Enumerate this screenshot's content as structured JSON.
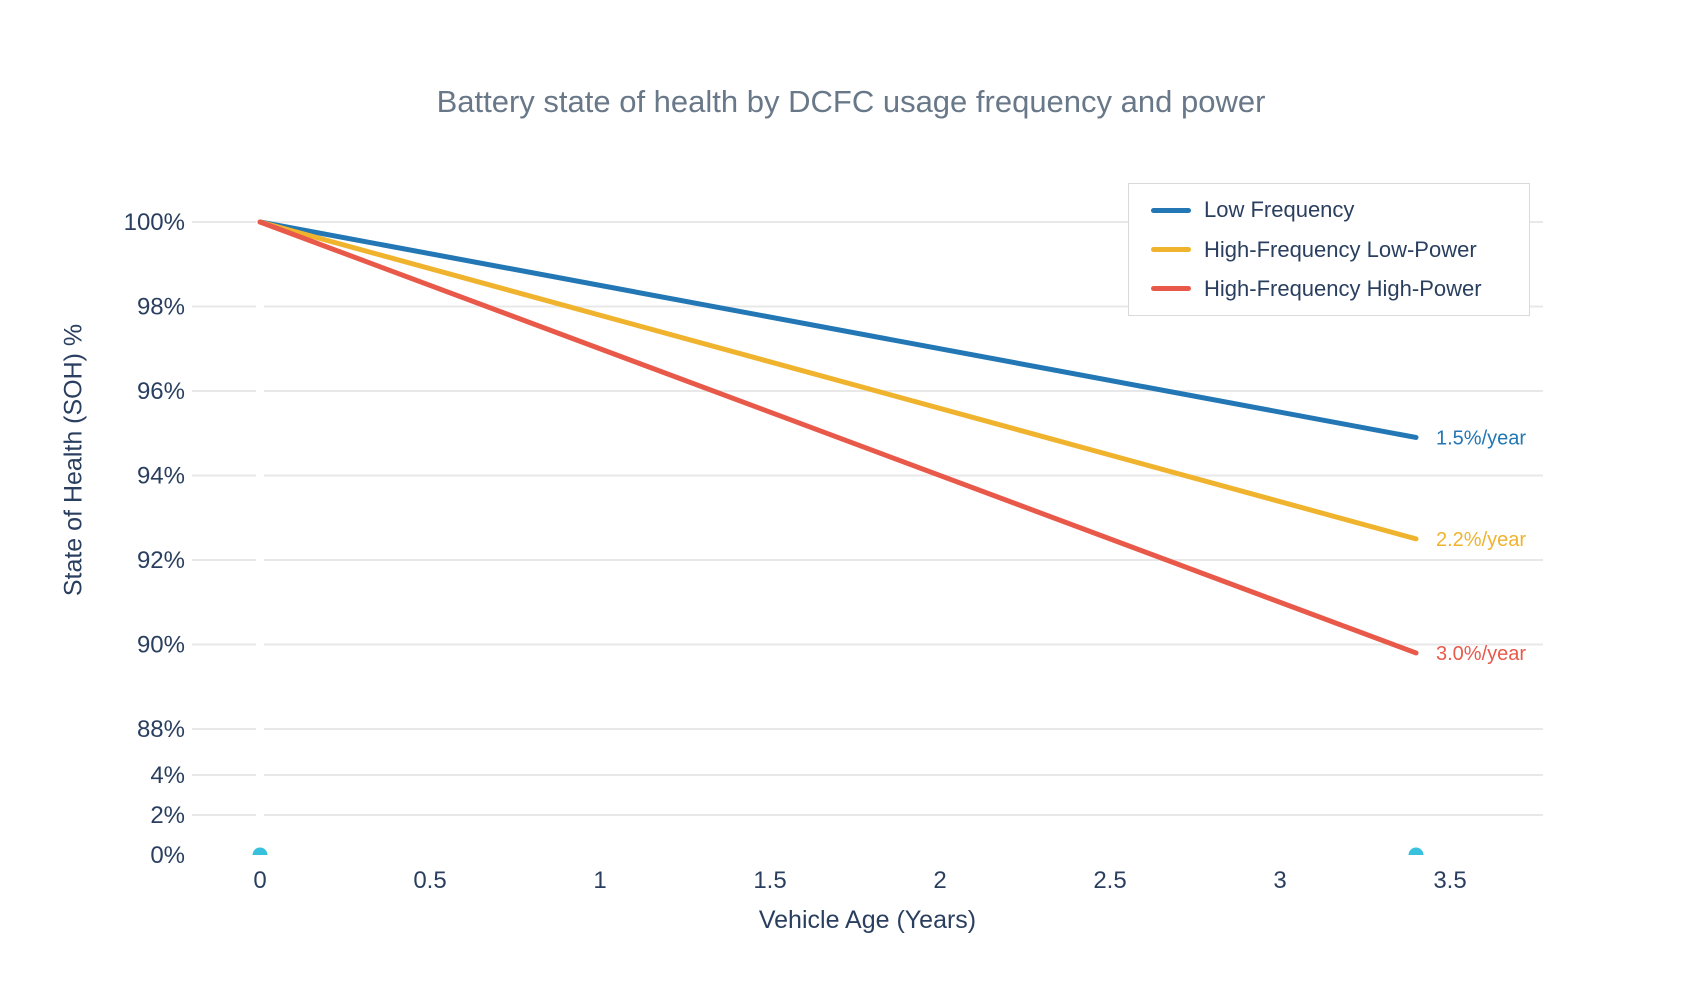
{
  "title": {
    "text": "Battery state of health by DCFC usage frequency and power",
    "color": "#697889"
  },
  "axes": {
    "x": {
      "title": "Vehicle Age (Years)",
      "ticks": [
        {
          "label": "0",
          "value": 0
        },
        {
          "label": "0.5",
          "value": 0.5
        },
        {
          "label": "1",
          "value": 1
        },
        {
          "label": "1.5",
          "value": 1.5
        },
        {
          "label": "2",
          "value": 2
        },
        {
          "label": "2.5",
          "value": 2.5
        },
        {
          "label": "3",
          "value": 3
        },
        {
          "label": "3.5",
          "value": 3.5
        }
      ]
    },
    "y": {
      "title": "State of Health (SOH) %",
      "upper_ticks": [
        {
          "label": "100%",
          "value": 100,
          "grid": true
        },
        {
          "label": "98%",
          "value": 98,
          "grid": true
        },
        {
          "label": "96%",
          "value": 96,
          "grid": true
        },
        {
          "label": "94%",
          "value": 94,
          "grid": true
        },
        {
          "label": "92%",
          "value": 92,
          "grid": true
        },
        {
          "label": "90%",
          "value": 90,
          "grid": true
        },
        {
          "label": "88%",
          "value": 88,
          "grid": true
        }
      ],
      "lower_ticks": [
        {
          "label": "4%",
          "value": 4,
          "grid": true
        },
        {
          "label": "2%",
          "value": 2,
          "grid": true
        },
        {
          "label": "0%",
          "value": 0,
          "grid": false
        }
      ]
    }
  },
  "colors": {
    "grid": "#e8e8e8",
    "text": "#2a3f5f",
    "legend_border": "#d9d9d9",
    "background": "#ffffff"
  },
  "chart_data": {
    "type": "line",
    "title": "Battery state of health by DCFC usage frequency and power",
    "xlabel": "Vehicle Age (Years)",
    "ylabel": "State of Health (SOH) %",
    "grid": true,
    "legend_position": "top-right",
    "x_range_years": [
      -0.2,
      3.77
    ],
    "broken_y_axis": {
      "upper_range_pct": [
        87.6,
        101.3
      ],
      "lower_range_pct": [
        0,
        5
      ],
      "upper_ticks_pct": [
        100,
        98,
        96,
        94,
        92,
        90,
        88
      ],
      "lower_ticks_pct": [
        4,
        2,
        0
      ]
    },
    "series": [
      {
        "name": "Low Frequency",
        "color": "#2277b4",
        "rate_pct_per_year": 1.5,
        "annotation": "1.5%/year",
        "x": [
          0,
          3.4
        ],
        "y_pct": [
          100,
          94.9
        ]
      },
      {
        "name": "High-Frequency Low-Power",
        "color": "#f0b32e",
        "rate_pct_per_year": 2.2,
        "annotation": "2.2%/year",
        "x": [
          0,
          3.4
        ],
        "y_pct": [
          100,
          92.5
        ]
      },
      {
        "name": "High-Frequency High-Power",
        "color": "#e9594a",
        "rate_pct_per_year": 3.0,
        "annotation": "3.0%/year",
        "x": [
          0,
          3.4
        ],
        "y_pct": [
          100,
          89.8
        ]
      }
    ],
    "marker_trace": {
      "color": "#38c1dc",
      "points": [
        {
          "x": 0,
          "y_pct": 0
        },
        {
          "x": 3.4,
          "y_pct": 0
        }
      ]
    }
  }
}
